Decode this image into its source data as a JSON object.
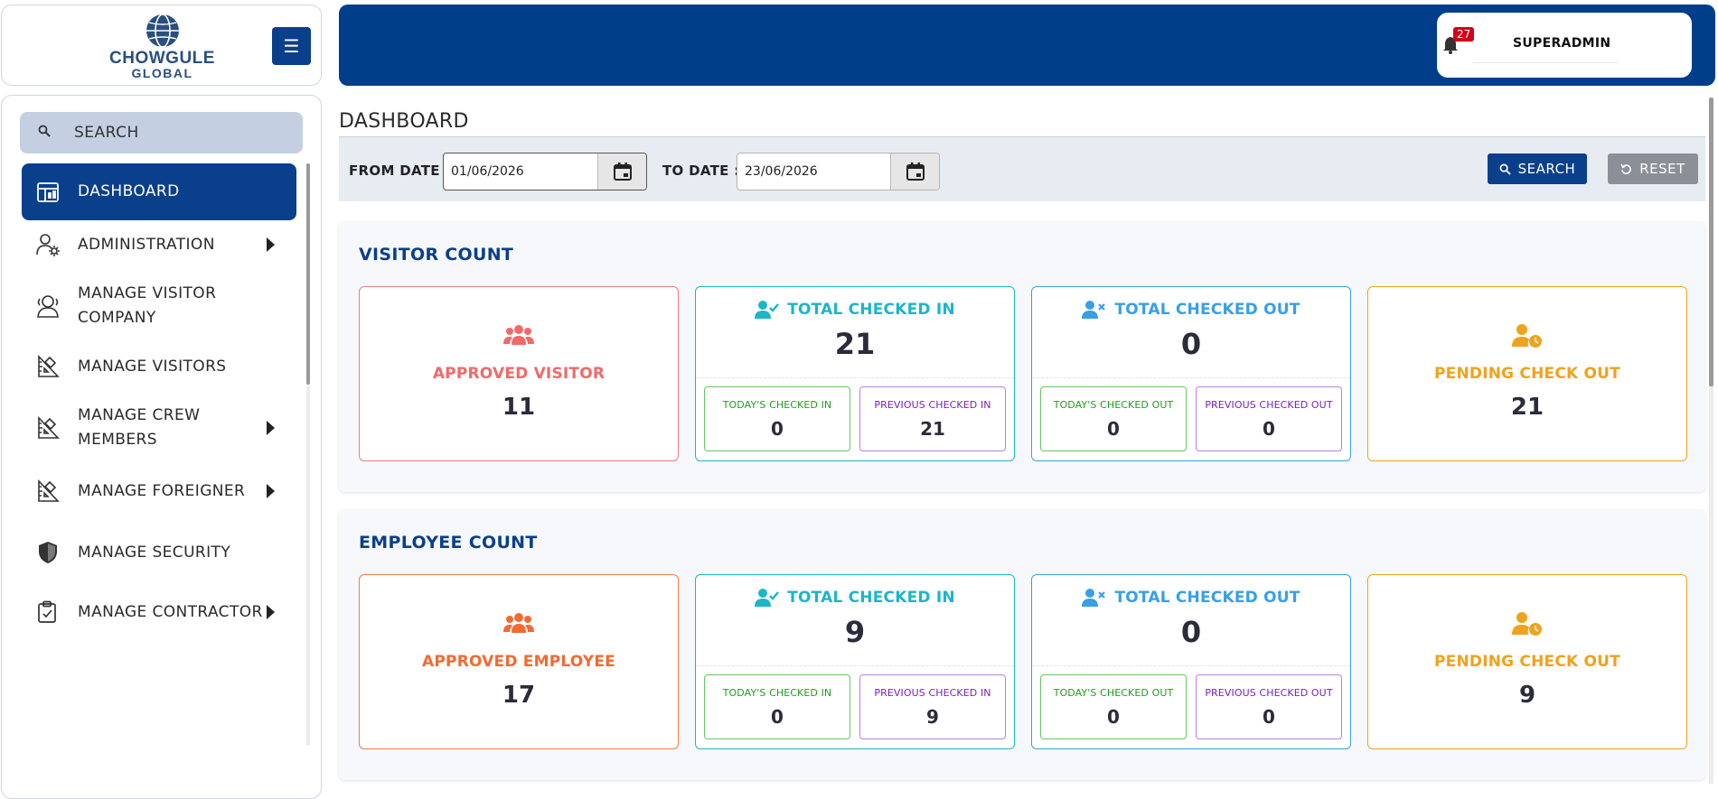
{
  "brand": {
    "line1": "CHOWGULE",
    "line2": "GLOBAL"
  },
  "sidebar": {
    "search_label": "SEARCH",
    "items": [
      {
        "label": "DASHBOARD",
        "icon": "dashboard-icon",
        "active": true,
        "has_submenu": false
      },
      {
        "label": "ADMINISTRATION",
        "icon": "admin-user-gear-icon",
        "has_submenu": true
      },
      {
        "label": "MANAGE VISITOR COMPANY",
        "icon": "users-outline-icon",
        "has_submenu": false
      },
      {
        "label": "MANAGE VISITORS",
        "icon": "ruler-icon",
        "has_submenu": false
      },
      {
        "label": "MANAGE CREW MEMBERS",
        "icon": "ruler-icon",
        "has_submenu": true
      },
      {
        "label": "MANAGE FOREIGNER",
        "icon": "ruler-icon",
        "has_submenu": true
      },
      {
        "label": "MANAGE SECURITY",
        "icon": "shield-icon",
        "has_submenu": false
      },
      {
        "label": "MANAGE CONTRACTOR",
        "icon": "clipboard-check-icon",
        "has_submenu": true
      }
    ]
  },
  "header": {
    "notification_count": "27",
    "username": "SUPERADMIN"
  },
  "page": {
    "title": "DASHBOARD",
    "filters": {
      "from_label": "FROM DATE :",
      "from_value": "01/06/2026",
      "to_label": "TO DATE :",
      "to_value": "23/06/2026",
      "search_label": "SEARCH",
      "reset_label": "RESET"
    }
  },
  "visitor": {
    "title": "VISITOR COUNT",
    "approved_label": "APPROVED VISITOR",
    "approved_value": "11",
    "checked_in_label": "TOTAL CHECKED IN",
    "checked_in_value": "21",
    "today_in_label": "TODAY'S CHECKED IN",
    "today_in_value": "0",
    "prev_in_label": "PREVIOUS CHECKED IN",
    "prev_in_value": "21",
    "checked_out_label": "TOTAL CHECKED OUT",
    "checked_out_value": "0",
    "today_out_label": "TODAY'S CHECKED OUT",
    "today_out_value": "0",
    "prev_out_label": "PREVIOUS CHECKED OUT",
    "prev_out_value": "0",
    "pending_label": "PENDING CHECK OUT",
    "pending_value": "21"
  },
  "employee": {
    "title": "EMPLOYEE COUNT",
    "approved_label": "APPROVED EMPLOYEE",
    "approved_value": "17",
    "checked_in_label": "TOTAL CHECKED IN",
    "checked_in_value": "9",
    "today_in_label": "TODAY'S CHECKED IN",
    "today_in_value": "0",
    "prev_in_label": "PREVIOUS CHECKED IN",
    "prev_in_value": "9",
    "checked_out_label": "TOTAL CHECKED OUT",
    "checked_out_value": "0",
    "today_out_label": "TODAY'S CHECKED OUT",
    "today_out_value": "0",
    "prev_out_label": "PREVIOUS CHECKED OUT",
    "prev_out_value": "0",
    "pending_label": "PENDING CHECK OUT",
    "pending_value": "9"
  },
  "colors": {
    "primary": "#0a3f8c",
    "topbar": "#003e8a",
    "approved_visitor": "#f06a6a",
    "approved_employee": "#f26a33",
    "checked_in": "#1bb6c9",
    "checked_out": "#37a0e6",
    "pending": "#f0a21d"
  }
}
